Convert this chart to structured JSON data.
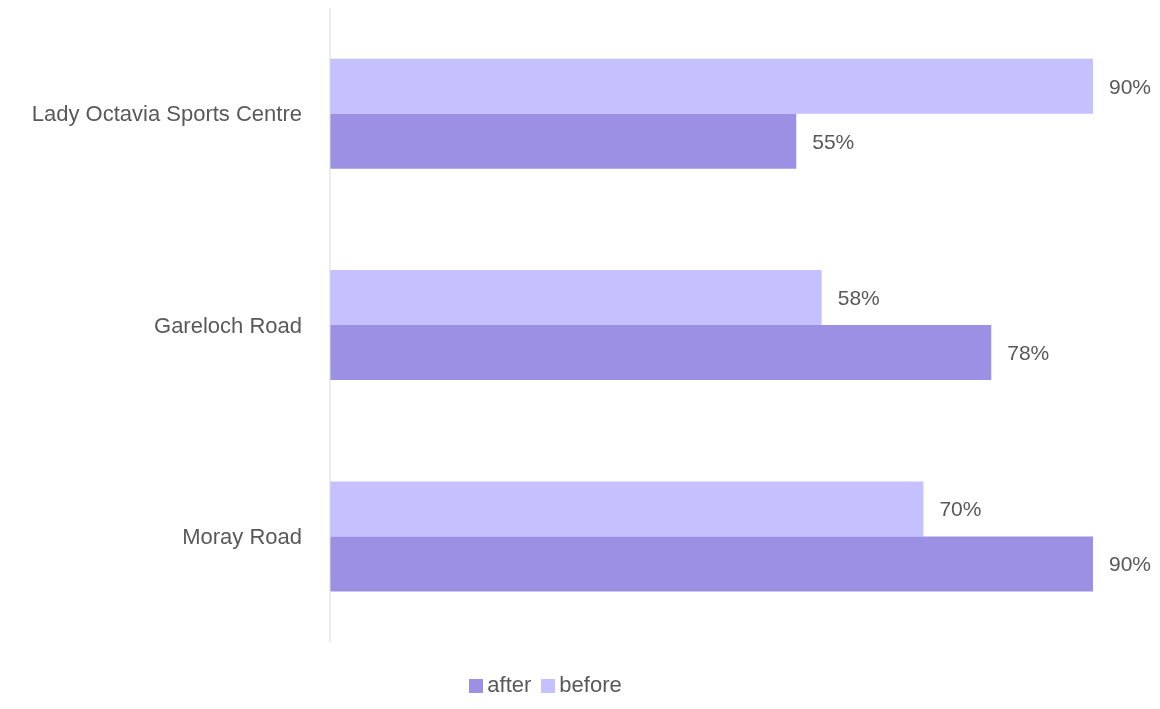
{
  "chart_data": {
    "type": "bar",
    "orientation": "horizontal",
    "categories": [
      "Lady Octavia Sports Centre",
      "Gareloch Road",
      "Moray Road"
    ],
    "series": [
      {
        "name": "before",
        "color": "#c5c0fe",
        "values": [
          90,
          58,
          70
        ],
        "value_labels": [
          "90%",
          "58%",
          "70%"
        ]
      },
      {
        "name": "after",
        "color": "#9b90e4",
        "values": [
          55,
          78,
          90
        ],
        "value_labels": [
          "55%",
          "78%",
          "90%"
        ]
      }
    ],
    "legend": "bottom",
    "grid": false
  }
}
